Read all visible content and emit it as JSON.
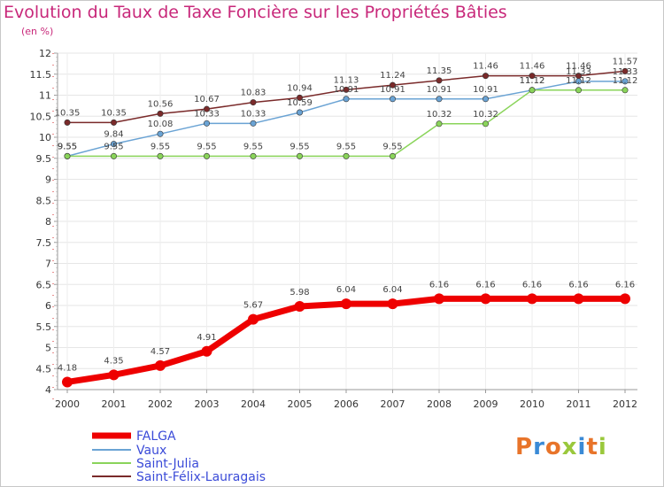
{
  "header": {
    "title": "Evolution du Taux de Taxe Foncière sur les Propriétés Bâties",
    "unit": "(en %)"
  },
  "logo": {
    "text": "Proxiti",
    "colors": [
      "#e8742a",
      "#3a8ad6",
      "#e8742a",
      "#9ac83c",
      "#3a8ad6",
      "#e8742a",
      "#9ac83c"
    ]
  },
  "chart_data": {
    "type": "line",
    "title": "Evolution du Taux de Taxe Foncière sur les Propriétés Bâties",
    "ylabel": "(en %)",
    "xlabel": "",
    "ylim": [
      4,
      12
    ],
    "yticks": [
      "4",
      "4.5",
      "5",
      "5.5",
      "6",
      "6.5",
      "7",
      "7.5",
      "8",
      "8.5",
      "9",
      "9.5",
      "10",
      "10.5",
      "11",
      "11.5",
      "12"
    ],
    "x": [
      "2000",
      "2001",
      "2002",
      "2003",
      "2004",
      "2005",
      "2006",
      "2007",
      "2008",
      "2009",
      "2010",
      "2011",
      "2012"
    ],
    "series": [
      {
        "name": "FALGA",
        "color": "#ee0000",
        "values": [
          4.18,
          4.35,
          4.57,
          4.91,
          5.67,
          5.98,
          6.04,
          6.04,
          6.16,
          6.16,
          6.16,
          6.16,
          6.16
        ],
        "labels": [
          "4.18",
          "4.35",
          "4.57",
          "4.91",
          "5.67",
          "5.98",
          "6.04",
          "6.04",
          "6.16",
          "6.16",
          "6.16",
          "6.16",
          "6.16"
        ]
      },
      {
        "name": "Vaux",
        "color": "#6aa3d4",
        "values": [
          9.55,
          9.84,
          10.08,
          10.33,
          10.33,
          10.59,
          10.91,
          10.91,
          10.91,
          10.91,
          11.12,
          11.33,
          11.33
        ],
        "labels": [
          "9.55",
          "9.84",
          "10.08",
          "10.33",
          "10.33",
          "10.59",
          "10.91",
          "10.91",
          "10.91",
          "10.91",
          "11.12",
          "11.33",
          "11.33"
        ]
      },
      {
        "name": "Saint-Julia",
        "color": "#8ad45a",
        "values": [
          9.55,
          9.55,
          9.55,
          9.55,
          9.55,
          9.55,
          9.55,
          9.55,
          10.32,
          10.32,
          11.12,
          11.12,
          11.12
        ],
        "labels": [
          "9.55",
          "9.55",
          "9.55",
          "9.55",
          "9.55",
          "9.55",
          "9.55",
          "9.55",
          "10.32",
          "10.32",
          "11.12",
          "11.12",
          "11.12"
        ]
      },
      {
        "name": "Saint-Félix-Lauragais",
        "color": "#7a2a2a",
        "values": [
          10.35,
          10.35,
          10.56,
          10.67,
          10.83,
          10.94,
          11.13,
          11.24,
          11.35,
          11.46,
          11.46,
          11.46,
          11.57
        ],
        "labels": [
          "10.35",
          "10.35",
          "10.56",
          "10.67",
          "10.83",
          "10.94",
          "11.13",
          "11.24",
          "11.35",
          "11.46",
          "11.46",
          "11.46",
          "11.57"
        ]
      }
    ],
    "legend_position": "bottom-left"
  }
}
